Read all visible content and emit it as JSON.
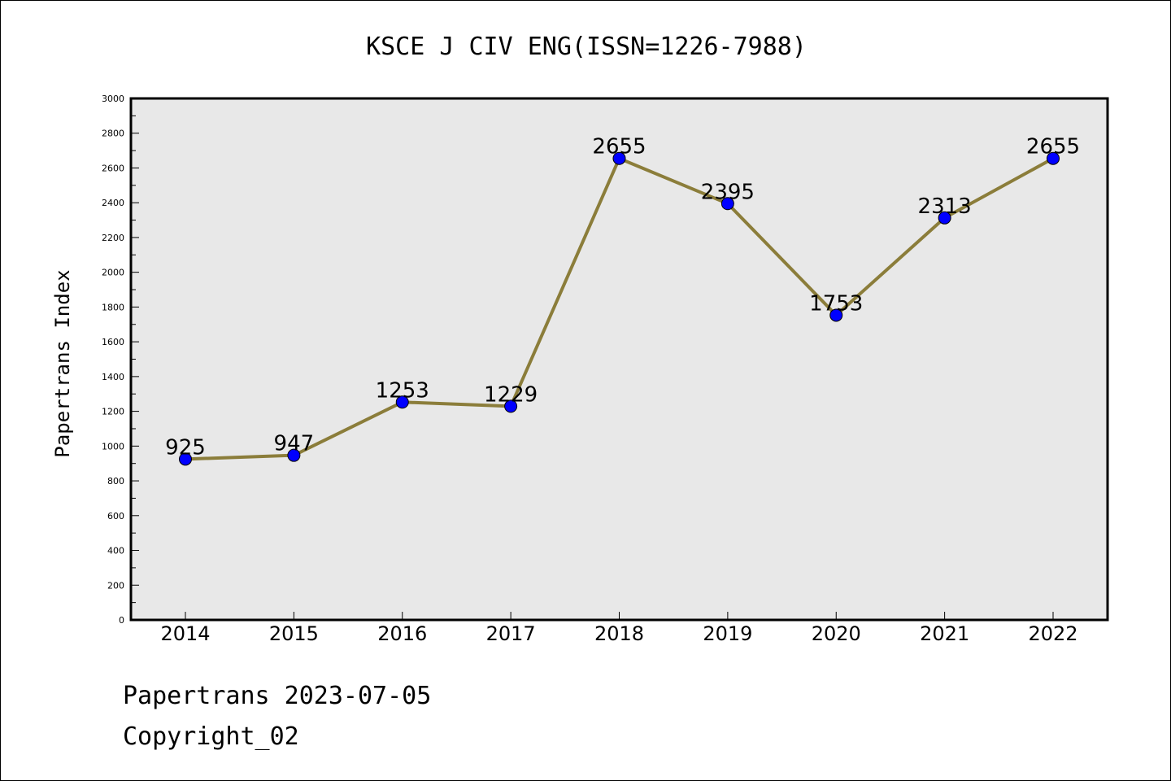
{
  "chart_data": {
    "type": "line",
    "title": "KSCE J CIV ENG(ISSN=1226-7988)",
    "xlabel": "",
    "ylabel": "Papertrans Index",
    "categories": [
      "2014",
      "2015",
      "2016",
      "2017",
      "2018",
      "2019",
      "2020",
      "2021",
      "2022"
    ],
    "series": [
      {
        "values": [
          925,
          947,
          1253,
          1229,
          2655,
          2395,
          1753,
          2313,
          2655
        ]
      }
    ],
    "data_labels": [
      "925",
      "947",
      "1253",
      "1229",
      "2655",
      "2395",
      "1753",
      "2313",
      "2655"
    ],
    "ylim": [
      0,
      3000
    ],
    "yticks": [
      0,
      200,
      400,
      600,
      800,
      1000,
      1200,
      1400,
      1600,
      1800,
      2000,
      2200,
      2400,
      2600,
      2800,
      3000
    ],
    "grid": false,
    "colors": {
      "line": "#8b7d3a",
      "marker": "#0000ff",
      "plot_bg": "#e8e8e8"
    }
  },
  "footer": {
    "line1": "Papertrans 2023-07-05",
    "line2": "Copyright_02"
  }
}
